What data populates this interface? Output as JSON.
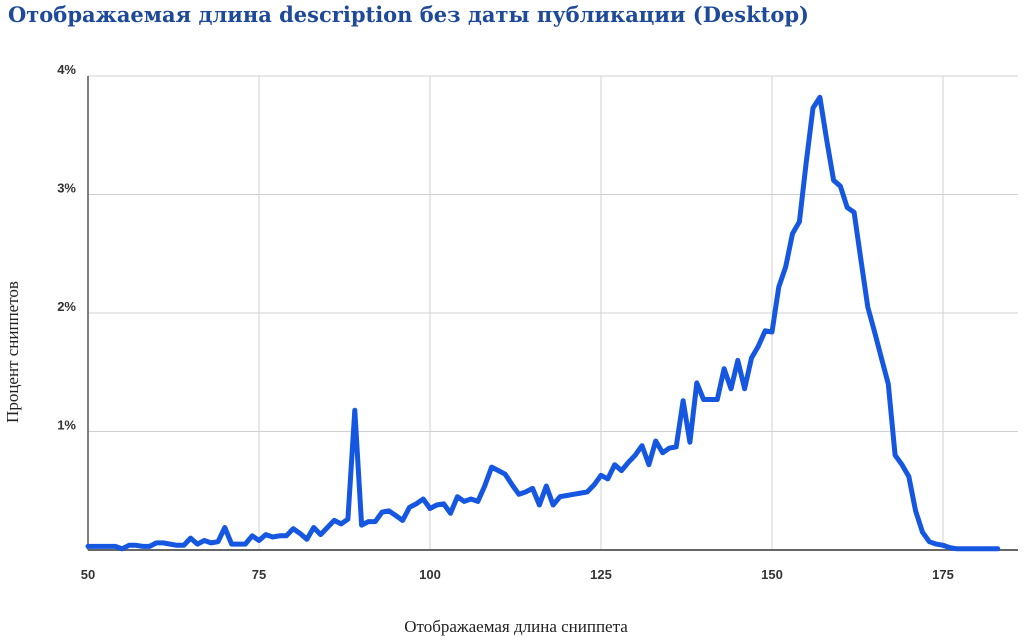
{
  "chart_data": {
    "type": "line",
    "title": "Отображаемая длина description без даты публикации (Desktop)",
    "xlabel": "Отображаемая длина сниппета",
    "ylabel": "Процент сниппетов",
    "xlim": [
      50,
      185
    ],
    "ylim": [
      0,
      4
    ],
    "x_ticks": [
      50,
      75,
      100,
      125,
      150,
      175
    ],
    "x_tick_labels": [
      "50",
      "75",
      "100",
      "125",
      "150",
      "175"
    ],
    "y_ticks": [
      1,
      2,
      3,
      4
    ],
    "y_tick_labels": [
      "1%",
      "2%",
      "3%",
      "4%"
    ],
    "grid": true,
    "colors": {
      "line": "#1557e0",
      "grid": "#d0d0d0",
      "title": "#1f4a9a"
    },
    "series": [
      {
        "x": [
          50,
          51,
          52,
          53,
          54,
          55,
          56,
          57,
          58,
          59,
          60,
          61,
          62,
          63,
          64,
          65,
          66,
          67,
          68,
          69,
          70,
          71,
          72,
          73,
          74,
          75,
          76,
          77,
          78,
          79,
          80,
          81,
          82,
          83,
          84,
          85,
          86,
          87,
          88,
          89,
          90,
          91,
          92,
          93,
          94,
          95,
          96,
          97,
          98,
          99,
          100,
          101,
          102,
          103,
          104,
          105,
          106,
          107,
          108,
          109,
          110,
          111,
          112,
          113,
          114,
          115,
          116,
          117,
          118,
          119,
          120,
          121,
          122,
          123,
          124,
          125,
          126,
          127,
          128,
          129,
          130,
          131,
          132,
          133,
          134,
          135,
          136,
          137,
          138,
          139,
          140,
          141,
          142,
          143,
          144,
          145,
          146,
          147,
          148,
          149,
          150,
          151,
          152,
          153,
          154,
          155,
          156,
          157,
          158,
          159,
          160,
          161,
          162,
          163,
          164,
          165,
          166,
          167,
          168,
          169,
          170,
          171,
          172,
          173,
          174,
          175,
          176,
          177,
          178,
          179,
          180,
          181,
          182,
          183
        ],
        "y": [
          0.03,
          0.03,
          0.03,
          0.03,
          0.03,
          0.01,
          0.04,
          0.04,
          0.03,
          0.03,
          0.06,
          0.06,
          0.05,
          0.04,
          0.04,
          0.1,
          0.05,
          0.08,
          0.06,
          0.07,
          0.19,
          0.05,
          0.05,
          0.05,
          0.12,
          0.08,
          0.13,
          0.11,
          0.12,
          0.12,
          0.18,
          0.14,
          0.09,
          0.19,
          0.13,
          0.19,
          0.25,
          0.22,
          0.26,
          1.18,
          0.21,
          0.24,
          0.24,
          0.32,
          0.33,
          0.29,
          0.25,
          0.36,
          0.39,
          0.43,
          0.35,
          0.38,
          0.39,
          0.31,
          0.45,
          0.41,
          0.43,
          0.41,
          0.54,
          0.7,
          0.67,
          0.64,
          0.55,
          0.47,
          0.49,
          0.52,
          0.38,
          0.54,
          0.38,
          0.45,
          0.46,
          0.47,
          0.48,
          0.49,
          0.55,
          0.63,
          0.6,
          0.72,
          0.67,
          0.74,
          0.8,
          0.88,
          0.72,
          0.92,
          0.82,
          0.86,
          0.87,
          1.26,
          0.91,
          1.41,
          1.27,
          1.27,
          1.27,
          1.53,
          1.36,
          1.6,
          1.36,
          1.62,
          1.72,
          1.85,
          1.84,
          2.22,
          2.39,
          2.67,
          2.77,
          3.27,
          3.73,
          3.82,
          3.46,
          3.12,
          3.07,
          2.89,
          2.85,
          2.45,
          2.05,
          1.84,
          1.62,
          1.4,
          0.8,
          0.72,
          0.62,
          0.33,
          0.15,
          0.07,
          0.05,
          0.04,
          0.02,
          0.01,
          0.01,
          0.01,
          0.01,
          0.01,
          0.01,
          0.01
        ]
      }
    ]
  }
}
